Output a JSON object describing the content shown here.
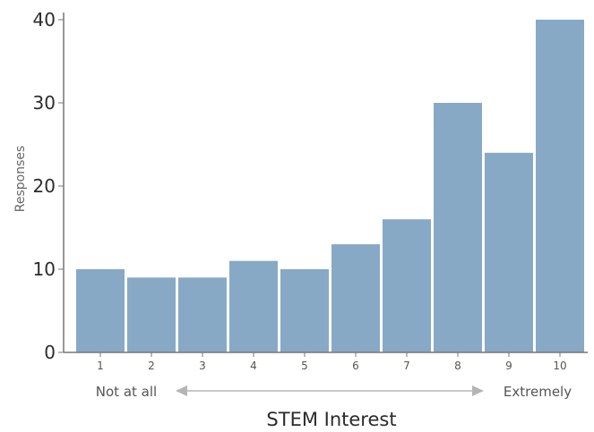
{
  "chart_data": {
    "type": "bar",
    "categories": [
      "1",
      "2",
      "3",
      "4",
      "5",
      "6",
      "7",
      "8",
      "9",
      "10"
    ],
    "values": [
      10,
      9,
      9,
      11,
      10,
      13,
      16,
      30,
      24,
      40
    ],
    "title": "",
    "xlabel": "STEM Interest",
    "ylabel": "Responses",
    "ylim": [
      0,
      40
    ],
    "yticks": [
      "0",
      "10",
      "20",
      "30",
      "40"
    ],
    "scale_low_label": "Not at all",
    "scale_high_label": "Extremely",
    "grid": false,
    "bar_color": "#87a9c6",
    "axis_color": "#777777",
    "arrow_color": "#b5b5b5"
  }
}
